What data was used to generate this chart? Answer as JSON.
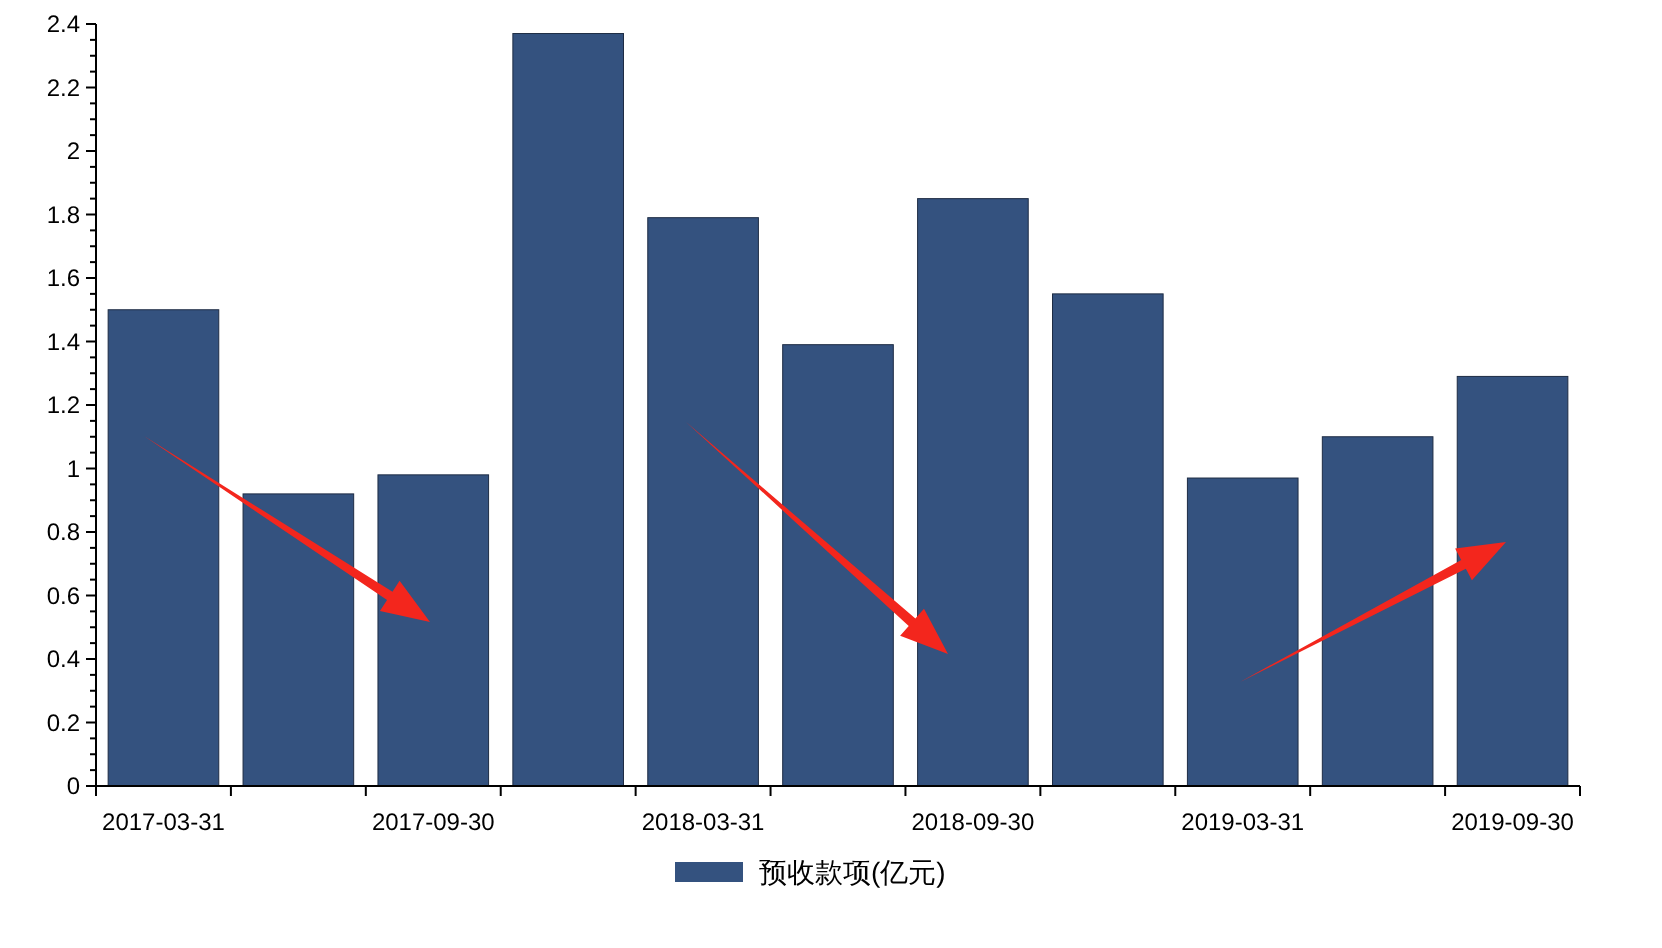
{
  "chart_data": {
    "type": "bar",
    "categories": [
      "2017-03-31",
      null,
      "2017-09-30",
      null,
      "2018-03-31",
      null,
      "2018-09-30",
      null,
      "2019-03-31",
      null,
      "2019-09-30"
    ],
    "series": [
      {
        "name": "预收款项(亿元)",
        "color": "#34527f",
        "values": [
          1.5,
          0.92,
          0.98,
          2.37,
          1.79,
          1.39,
          1.85,
          1.55,
          0.97,
          1.1,
          1.29
        ]
      }
    ],
    "ylim": [
      0,
      2.4
    ],
    "yticks": [
      0,
      0.2,
      0.4,
      0.6,
      0.8,
      1,
      1.2,
      1.4,
      1.6,
      1.8,
      2,
      2.2,
      2.4
    ],
    "grid": false,
    "legend": "bottom"
  }
}
